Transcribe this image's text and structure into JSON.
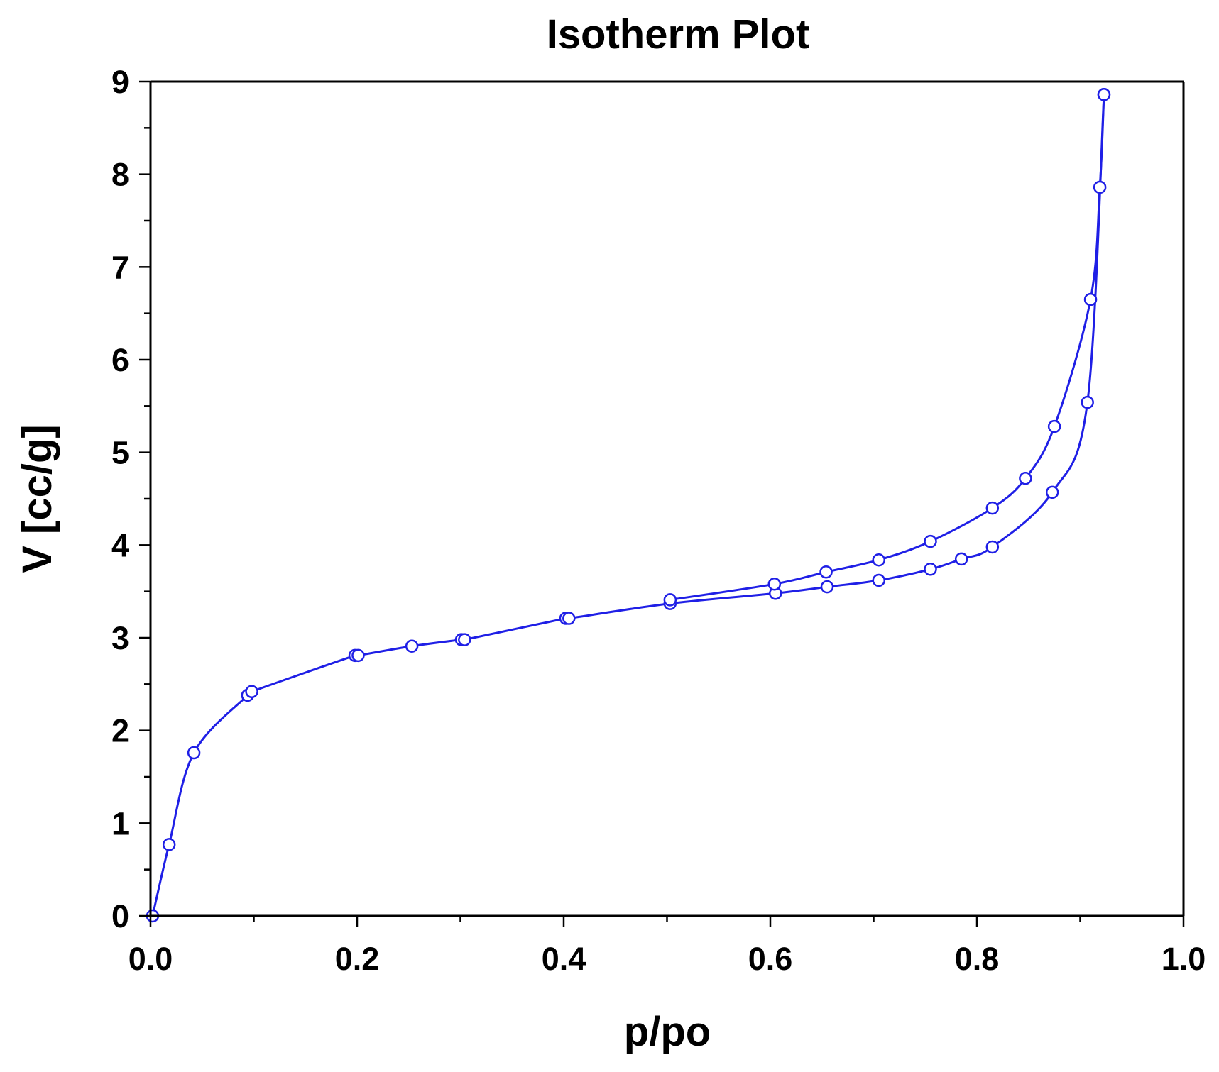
{
  "chart_data": {
    "type": "line",
    "title": "Isotherm Plot",
    "xlabel": "p/po",
    "ylabel": "V [cc/g]",
    "xlim": [
      0.0,
      1.0
    ],
    "ylim": [
      0,
      9
    ],
    "x_ticks": [
      "0.0",
      "0.2",
      "0.4",
      "0.6",
      "0.8",
      "1.0"
    ],
    "y_ticks": [
      "0",
      "1",
      "2",
      "3",
      "4",
      "5",
      "6",
      "7",
      "8",
      "9"
    ],
    "grid": false,
    "markers": "open-circle",
    "color": "#1f1fe6",
    "series": [
      {
        "x": [
          0.002,
          0.018,
          0.042,
          0.094,
          0.098,
          0.198,
          0.201,
          0.253,
          0.301,
          0.304,
          0.402,
          0.405,
          0.503,
          0.605,
          0.655,
          0.705,
          0.755,
          0.785,
          0.815,
          0.873,
          0.907,
          0.923
        ],
        "y": [
          0.0,
          0.77,
          1.76,
          2.38,
          2.42,
          2.81,
          2.81,
          2.91,
          2.98,
          2.98,
          3.21,
          3.21,
          3.37,
          3.48,
          3.55,
          3.62,
          3.74,
          3.85,
          3.98,
          4.57,
          5.54,
          8.86
        ]
      },
      {
        "x": [
          0.923,
          0.919,
          0.91,
          0.875,
          0.847,
          0.815,
          0.755,
          0.705,
          0.654,
          0.604,
          0.503
        ],
        "y": [
          8.86,
          7.86,
          6.65,
          5.28,
          4.72,
          4.4,
          4.04,
          3.84,
          3.71,
          3.58,
          3.41
        ]
      }
    ]
  }
}
